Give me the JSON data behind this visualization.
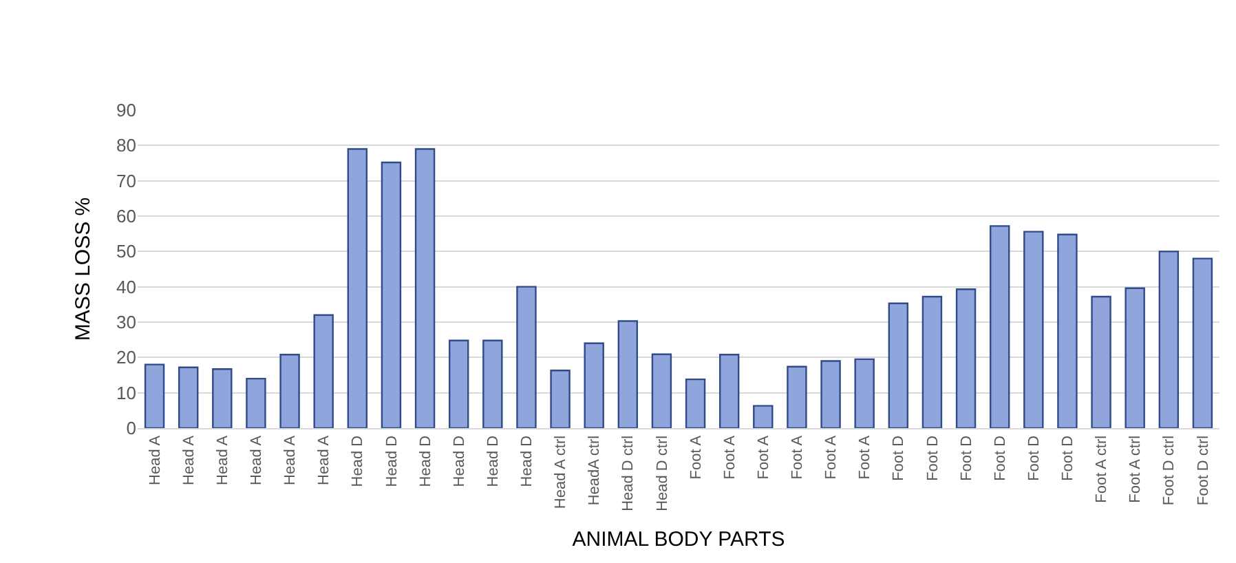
{
  "chart_data": {
    "type": "bar",
    "xlabel": "ANIMAL BODY PARTS",
    "ylabel": "MASS LOSS %",
    "categories": [
      "Head A",
      "Head A",
      "Head A",
      "Head A",
      "Head A",
      "Head A",
      "Head D",
      "Head D",
      "Head D",
      "Head D",
      "Head D",
      "Head D",
      "Head A ctrl",
      "HeadA ctrl",
      "Head D ctrl",
      "Head D ctrl",
      "Foot A",
      "Foot A",
      "Foot A",
      "Foot A",
      "Foot A",
      "Foot A",
      "Foot D",
      "Foot D",
      "Foot D",
      "Foot D",
      "Foot D",
      "Foot D",
      "Foot A ctrl",
      "Foot A ctrl",
      "Foot D ctrl",
      "Foot D ctrl"
    ],
    "values": [
      18,
      17.2,
      16.7,
      14,
      20.8,
      32,
      79,
      75.2,
      79,
      24.8,
      24.8,
      40,
      16.3,
      24,
      30.3,
      20.9,
      13.8,
      20.8,
      6.3,
      17.4,
      19,
      19.5,
      35.3,
      37.2,
      39.3,
      57.2,
      55.6,
      54.8,
      37.2,
      39.6,
      50,
      48
    ],
    "color": "#8fa5dc",
    "ylim": [
      0,
      90
    ],
    "yticks": [
      0,
      10,
      20,
      30,
      40,
      50,
      60,
      70,
      80,
      90
    ],
    "grid": "y"
  }
}
